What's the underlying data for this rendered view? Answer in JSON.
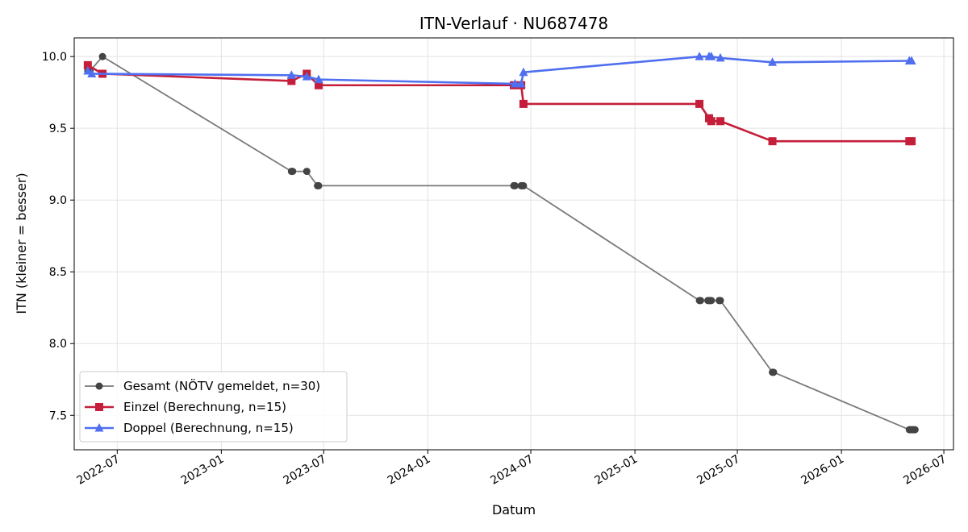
{
  "chart_data": {
    "type": "line",
    "title": "ITN-Verlauf · NU687478",
    "xlabel": "Datum",
    "ylabel": "ITN  (kleiner = besser)",
    "xlim": [
      "2022-04-16",
      "2026-07-18"
    ],
    "ylim": [
      7.26,
      10.13
    ],
    "x_ticks": [
      "2022-07-01",
      "2023-01-01",
      "2023-07-01",
      "2024-01-01",
      "2024-07-01",
      "2025-01-01",
      "2025-07-01",
      "2026-01-01",
      "2026-07-01"
    ],
    "x_tick_labels": [
      "2022-07",
      "2023-01",
      "2023-07",
      "2024-01",
      "2024-07",
      "2025-01",
      "2025-07",
      "2026-01",
      "2026-07"
    ],
    "y_ticks": [
      7.5,
      8.0,
      8.5,
      9.0,
      9.5,
      10.0
    ],
    "y_tick_labels": [
      "7.5",
      "8.0",
      "8.5",
      "9.0",
      "9.5",
      "10.0"
    ],
    "grid": true,
    "legend_position": "lower-left",
    "series": [
      {
        "name": "Gesamt (NÖTV gemeldet, n=30)",
        "color": "#555555",
        "marker": "circle",
        "points": [
          [
            "2022-05-10",
            9.9
          ],
          [
            "2022-05-12",
            9.9
          ],
          [
            "2022-05-14",
            9.9
          ],
          [
            "2022-06-05",
            10.0
          ],
          [
            "2023-05-05",
            9.2
          ],
          [
            "2023-05-07",
            9.2
          ],
          [
            "2023-06-01",
            9.2
          ],
          [
            "2023-06-20",
            9.1
          ],
          [
            "2023-06-22",
            9.1
          ],
          [
            "2024-06-01",
            9.1
          ],
          [
            "2024-06-03",
            9.1
          ],
          [
            "2024-06-14",
            9.1
          ],
          [
            "2024-06-16",
            9.1
          ],
          [
            "2024-06-18",
            9.1
          ],
          [
            "2025-04-25",
            8.3
          ],
          [
            "2025-04-27",
            8.3
          ],
          [
            "2025-05-10",
            8.3
          ],
          [
            "2025-05-12",
            8.3
          ],
          [
            "2025-05-14",
            8.3
          ],
          [
            "2025-05-16",
            8.3
          ],
          [
            "2025-05-30",
            8.3
          ],
          [
            "2025-06-01",
            8.3
          ],
          [
            "2025-09-01",
            7.8
          ],
          [
            "2025-09-03",
            7.8
          ],
          [
            "2026-05-01",
            7.4
          ],
          [
            "2026-05-03",
            7.4
          ],
          [
            "2026-05-05",
            7.4
          ],
          [
            "2026-05-07",
            7.4
          ],
          [
            "2026-05-09",
            7.4
          ],
          [
            "2026-05-11",
            7.4
          ]
        ]
      },
      {
        "name": "Einzel (Berechnung, n=15)",
        "color": "#c41e3a",
        "marker": "square",
        "points": [
          [
            "2022-05-10",
            9.94
          ],
          [
            "2022-06-05",
            9.88
          ],
          [
            "2023-05-05",
            9.83
          ],
          [
            "2023-06-01",
            9.88
          ],
          [
            "2023-06-22",
            9.8
          ],
          [
            "2024-06-01",
            9.8
          ],
          [
            "2024-06-14",
            9.8
          ],
          [
            "2024-06-18",
            9.67
          ],
          [
            "2025-04-25",
            9.67
          ],
          [
            "2025-05-12",
            9.57
          ],
          [
            "2025-05-16",
            9.55
          ],
          [
            "2025-06-01",
            9.55
          ],
          [
            "2025-09-01",
            9.41
          ],
          [
            "2026-05-01",
            9.41
          ],
          [
            "2026-05-05",
            9.41
          ]
        ]
      },
      {
        "name": "Doppel (Berechnung, n=15)",
        "color": "#4f6ff0",
        "marker": "triangle",
        "points": [
          [
            "2022-05-10",
            9.9
          ],
          [
            "2022-05-17",
            9.88
          ],
          [
            "2023-05-05",
            9.87
          ],
          [
            "2023-06-01",
            9.86
          ],
          [
            "2023-06-22",
            9.84
          ],
          [
            "2024-06-03",
            9.81
          ],
          [
            "2024-06-14",
            9.81
          ],
          [
            "2024-06-18",
            9.89
          ],
          [
            "2025-04-25",
            10.0
          ],
          [
            "2025-05-12",
            10.0
          ],
          [
            "2025-05-16",
            10.0
          ],
          [
            "2025-06-01",
            9.99
          ],
          [
            "2025-09-01",
            9.96
          ],
          [
            "2026-05-01",
            9.97
          ],
          [
            "2026-05-05",
            9.97
          ]
        ]
      }
    ]
  }
}
